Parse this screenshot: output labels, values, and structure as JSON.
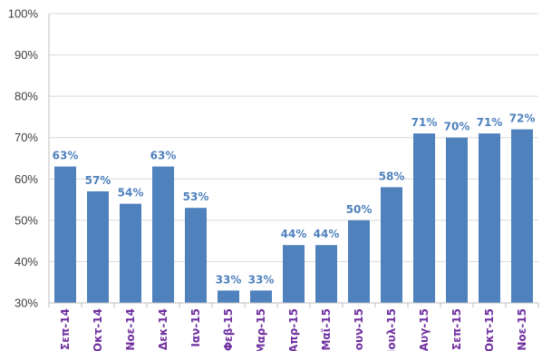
{
  "chart_data": {
    "type": "bar",
    "categories": [
      "Σεπ-14",
      "Οκτ-14",
      "Νοε-14",
      "Δεκ-14",
      "Ιαν-15",
      "Φεβ-15",
      "Μαρ-15",
      "Απρ-15",
      "Μαϊ-15",
      "Ιουν-15",
      "Ιουλ-15",
      "Αυγ-15",
      "Σεπ-15",
      "Οκτ-15",
      "Νοε-15"
    ],
    "series": [
      {
        "values": [
          63,
          57,
          54,
          63,
          53,
          33,
          33,
          44,
          44,
          50,
          58,
          71,
          70,
          71,
          72
        ]
      }
    ],
    "data_labels": [
      "63%",
      "57%",
      "54%",
      "63%",
      "53%",
      "33%",
      "33%",
      "44%",
      "44%",
      "50%",
      "58%",
      "71%",
      "70%",
      "71%",
      "72%"
    ],
    "ylim": [
      30,
      100
    ],
    "yticks": [
      "30%",
      "40%",
      "50%",
      "60%",
      "70%",
      "80%",
      "90%",
      "100%"
    ],
    "grid": true,
    "colors": {
      "bar": "#4f81bd",
      "label": "#4f81bd",
      "category": "#7030a0",
      "grid": "#d9d9d9"
    }
  }
}
